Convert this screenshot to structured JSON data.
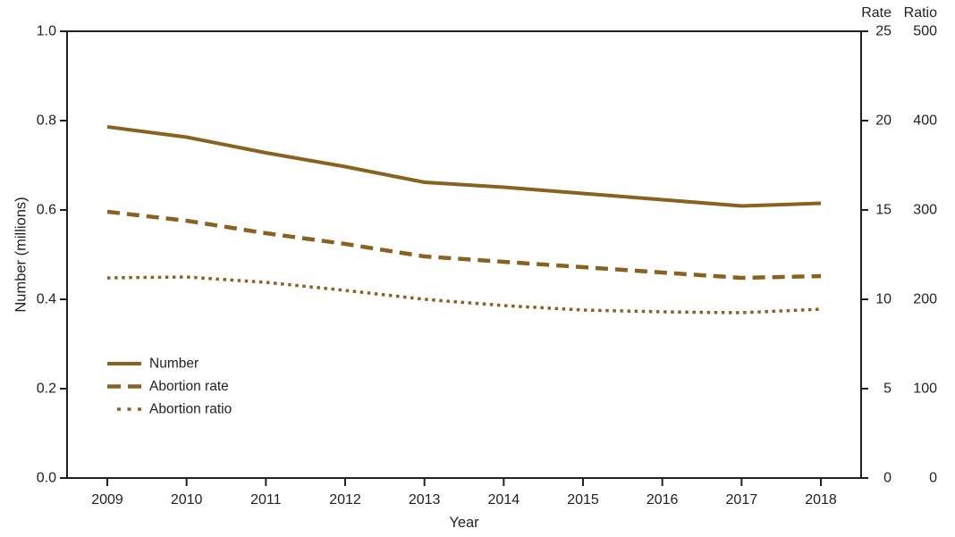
{
  "chart_data": {
    "type": "line",
    "title": "",
    "xlabel": "Year",
    "ylabel_left": "Number (millions)",
    "rate_header": "Rate",
    "ratio_header": "Ratio",
    "x": [
      2009,
      2010,
      2011,
      2012,
      2013,
      2014,
      2015,
      2016,
      2017,
      2018
    ],
    "series": [
      {
        "name": "Number",
        "style": "solid",
        "axis": "number_millions",
        "axis_max": 1.0,
        "values": [
          0.786,
          0.763,
          0.728,
          0.697,
          0.662,
          0.651,
          0.637,
          0.623,
          0.609,
          0.615
        ]
      },
      {
        "name": "Abortion rate",
        "style": "dashed",
        "axis": "rate",
        "axis_max": 25,
        "values": [
          14.9,
          14.4,
          13.7,
          13.1,
          12.4,
          12.1,
          11.8,
          11.5,
          11.2,
          11.3
        ]
      },
      {
        "name": "Abortion ratio",
        "style": "dotted",
        "axis": "ratio",
        "axis_max": 500,
        "values": [
          224,
          225,
          219,
          210,
          200,
          193,
          188,
          186,
          185,
          189
        ]
      }
    ],
    "left_ticks": [
      "0.0",
      "0.2",
      "0.4",
      "0.6",
      "0.8",
      "1.0"
    ],
    "rate_ticks": [
      "0",
      "5",
      "10",
      "15",
      "20",
      "25"
    ],
    "ratio_ticks": [
      "0",
      "100",
      "200",
      "300",
      "400",
      "500"
    ],
    "ylim_left": [
      0.0,
      1.0
    ],
    "ylim_rate": [
      0,
      25
    ],
    "ylim_ratio": [
      0,
      500
    ],
    "grid": "off",
    "legend_position": "inside-lower-left",
    "line_color": "#8a6120",
    "axis_color": "#231f20"
  }
}
